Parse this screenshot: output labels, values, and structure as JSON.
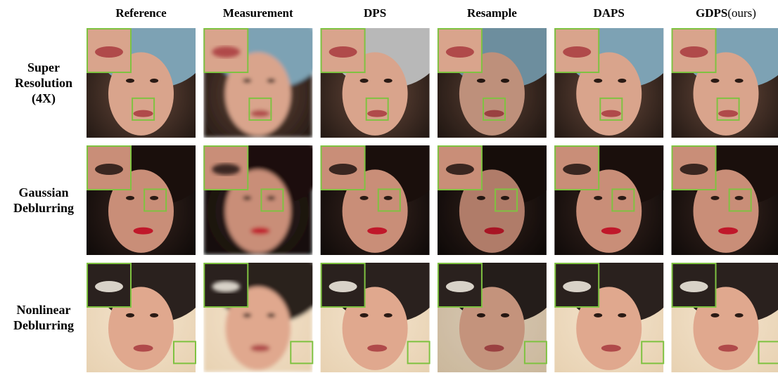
{
  "figure": {
    "columns": [
      {
        "label": "Reference"
      },
      {
        "label": "Measurement"
      },
      {
        "label": "DPS"
      },
      {
        "label": "Resample"
      },
      {
        "label": "DAPS"
      },
      {
        "label": "GDPS",
        "note": "(ours)"
      }
    ],
    "rows": [
      {
        "lines": [
          "Super",
          "Resolution",
          "(4X)"
        ]
      },
      {
        "lines": [
          "Gaussian",
          "Deblurring"
        ]
      },
      {
        "lines": [
          "Nonlinear",
          "Deblurring"
        ]
      }
    ]
  }
}
